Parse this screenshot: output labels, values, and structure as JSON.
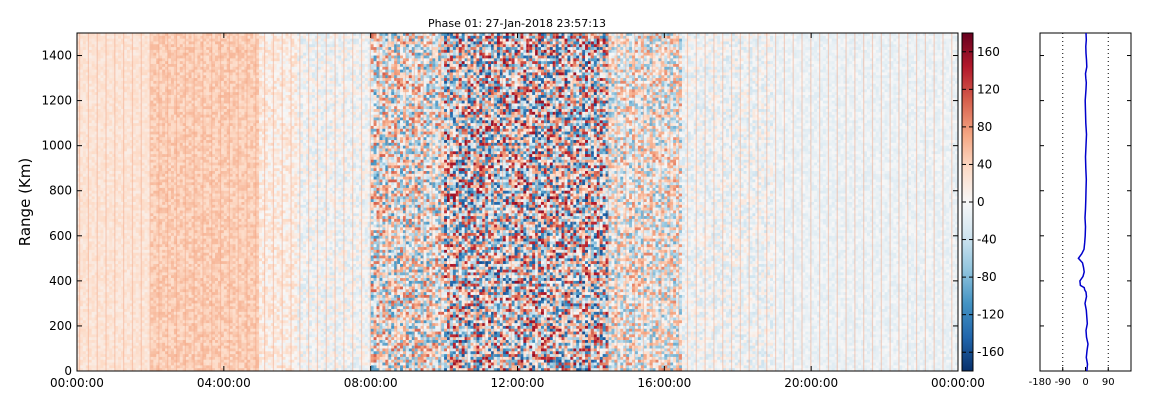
{
  "chart_data": [
    {
      "type": "heatmap",
      "title": "Phase 01: 27-Jan-2018 23:57:13",
      "xlabel": "",
      "ylabel": "Range (Km)",
      "xticks": [
        "00:00:00",
        "04:00:00",
        "08:00:00",
        "12:00:00",
        "16:00:00",
        "20:00:00",
        "00:00:00"
      ],
      "xlim_hours": [
        0,
        24
      ],
      "yticks": [
        0,
        200,
        400,
        600,
        800,
        1000,
        1200,
        1400
      ],
      "ylim": [
        0,
        1500
      ],
      "colorbar": {
        "ticks": [
          -160,
          -120,
          -80,
          -40,
          0,
          40,
          80,
          120,
          160
        ],
        "range": [
          -180,
          180
        ],
        "colors": [
          "#08306b",
          "#2166ac",
          "#4393c3",
          "#92c5de",
          "#d1e5f0",
          "#f7f7f7",
          "#fddbc7",
          "#f4a582",
          "#d6604d",
          "#b2182b",
          "#67001f"
        ]
      },
      "phase_regimes": [
        {
          "from_hour": 0.0,
          "to_hour": 2.0,
          "mean": 25,
          "spread": 12
        },
        {
          "from_hour": 2.0,
          "to_hour": 5.0,
          "mean": 45,
          "spread": 15
        },
        {
          "from_hour": 5.0,
          "to_hour": 6.0,
          "mean": 15,
          "spread": 25
        },
        {
          "from_hour": 6.0,
          "to_hour": 8.0,
          "mean": -5,
          "spread": 30
        },
        {
          "from_hour": 8.0,
          "to_hour": 10.0,
          "mean": 0,
          "spread": 110
        },
        {
          "from_hour": 10.0,
          "to_hour": 14.5,
          "mean": 0,
          "spread": 160
        },
        {
          "from_hour": 14.5,
          "to_hour": 16.5,
          "mean": 0,
          "spread": 90
        },
        {
          "from_hour": 16.5,
          "to_hour": 19.0,
          "mean": -8,
          "spread": 30
        },
        {
          "from_hour": 19.0,
          "to_hour": 24.0,
          "mean": -12,
          "spread": 12
        }
      ]
    },
    {
      "type": "line",
      "title": "",
      "xticks": [
        -180,
        -90,
        0,
        90
      ],
      "xlim": [
        -180,
        180
      ],
      "ylim": [
        0,
        1500
      ],
      "grid_x": [
        -90,
        90
      ],
      "color": "#0000cc",
      "x": [
        5,
        8,
        3,
        6,
        10,
        4,
        2,
        7,
        5,
        3,
        -2,
        0,
        4,
        2,
        -3,
        -5,
        -20,
        -22,
        -10,
        -5,
        -8,
        -12,
        -28,
        -15,
        -6,
        -3,
        -1,
        0,
        -2,
        0,
        1,
        2,
        3,
        1,
        0,
        2,
        4,
        1,
        0,
        -1,
        2,
        3,
        1,
        0,
        5,
        4,
        2,
        1,
        3,
        2
      ],
      "y": [
        0,
        30,
        60,
        90,
        120,
        150,
        180,
        210,
        240,
        270,
        300,
        310,
        330,
        350,
        360,
        370,
        380,
        400,
        420,
        440,
        460,
        480,
        500,
        520,
        540,
        570,
        600,
        640,
        680,
        720,
        760,
        800,
        850,
        900,
        950,
        1000,
        1050,
        1100,
        1150,
        1200,
        1250,
        1280,
        1300,
        1320,
        1350,
        1380,
        1410,
        1440,
        1470,
        1500
      ]
    }
  ]
}
